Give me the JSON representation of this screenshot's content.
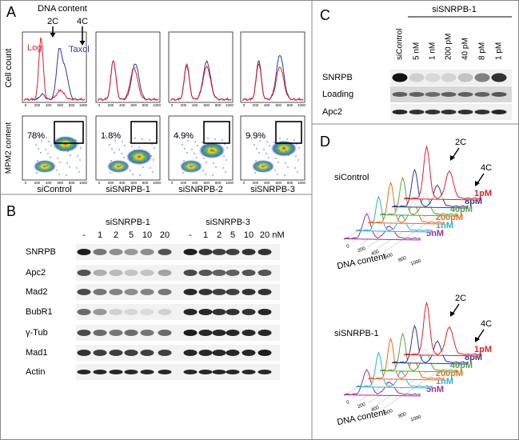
{
  "panel_a": {
    "label": "A",
    "annotation": "DNA content",
    "peaks": [
      "2C",
      "4C"
    ],
    "legend": [
      "Log",
      "Taxol"
    ],
    "y_label_top": "Cell count",
    "y_label_bottom": "MPM2 content",
    "ticks": [
      "0",
      "200",
      "400",
      "600",
      "800",
      "1000"
    ],
    "conditions": [
      {
        "name": "siControl",
        "percent": "78%"
      },
      {
        "name": "siSNRPB-1",
        "percent": "1.8%"
      },
      {
        "name": "siSNRPB-2",
        "percent": "4.9%"
      },
      {
        "name": "siSNRPB-3",
        "percent": "9.9%"
      }
    ]
  },
  "panel_b": {
    "label": "B",
    "groups": [
      "siSNRPB-1",
      "siSNRPB-3"
    ],
    "lanes": [
      "-",
      "1",
      "2",
      "5",
      "10",
      "20"
    ],
    "unit": "nM",
    "rows": [
      "SNRPB",
      "Apc2",
      "Mad2",
      "BubR1",
      "γ-Tub",
      "Mad1",
      "Actin"
    ]
  },
  "panel_c": {
    "label": "C",
    "group": "siSNRPB-1",
    "lanes": [
      "siControl",
      "5 nM",
      "1 nM",
      "200 pM",
      "40 pM",
      "8 pM",
      "1 pM"
    ],
    "rows": [
      "SNRPB",
      "Loading",
      "Apc2"
    ]
  },
  "panel_d": {
    "label": "D",
    "axis_label": "DNA content",
    "ticks": [
      "0",
      "200",
      "400",
      "600",
      "800",
      "1000"
    ],
    "peaks": [
      "2C",
      "4C"
    ],
    "conditions": [
      "siControl",
      "siSNRPB-1"
    ],
    "series": [
      {
        "name": "1pM",
        "color": "#e0202a"
      },
      {
        "name": "8pM",
        "color": "#2b3a9a"
      },
      {
        "name": "40pM",
        "color": "#5aa63a"
      },
      {
        "name": "200pM",
        "color": "#ee6a1f"
      },
      {
        "name": "1nM",
        "color": "#2ab0d8"
      },
      {
        "name": "5nM",
        "color": "#a2309a"
      }
    ]
  }
}
